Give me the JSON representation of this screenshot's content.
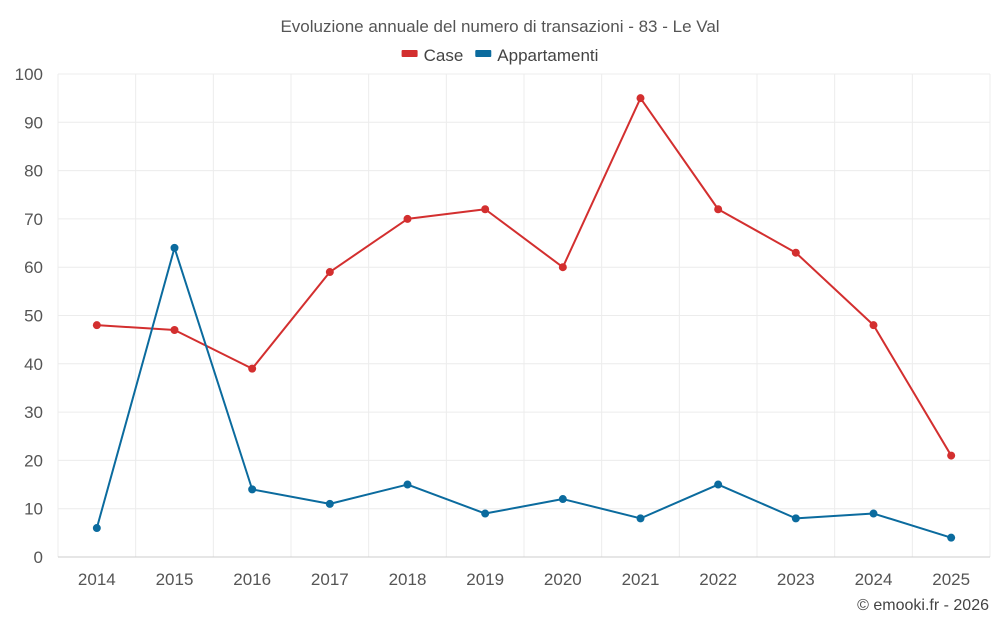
{
  "chart_data": {
    "type": "line",
    "title": "Evoluzione annuale del numero di transazioni - 83 - Le Val",
    "categories": [
      "2014",
      "2015",
      "2016",
      "2017",
      "2018",
      "2019",
      "2020",
      "2021",
      "2022",
      "2023",
      "2024",
      "2025"
    ],
    "series": [
      {
        "name": "Case",
        "color": "#d32f2f",
        "values": [
          48,
          47,
          39,
          59,
          70,
          72,
          60,
          95,
          72,
          63,
          48,
          21
        ]
      },
      {
        "name": "Appartamenti",
        "color": "#0b6b9e",
        "values": [
          6,
          64,
          14,
          11,
          15,
          9,
          12,
          8,
          15,
          8,
          9,
          4
        ]
      }
    ],
    "ylim": [
      0,
      100
    ],
    "yticks": [
      0,
      10,
      20,
      30,
      40,
      50,
      60,
      70,
      80,
      90,
      100
    ],
    "xlabel": "",
    "ylabel": "",
    "grid": true,
    "legend_position": "top-center"
  },
  "credit": "© emooki.fr - 2026"
}
